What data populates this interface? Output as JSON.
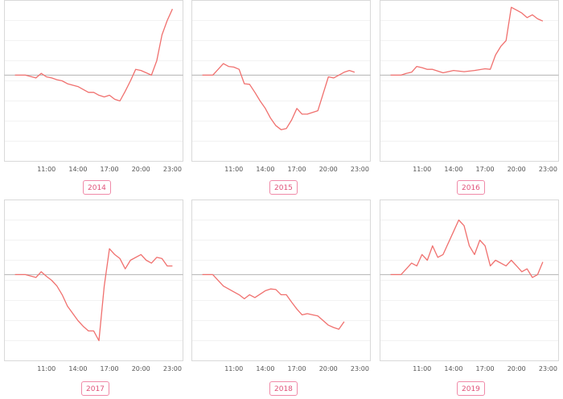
{
  "chart_data": [
    {
      "type": "line",
      "title": "",
      "year_label": "2014",
      "xticks": [
        "11:00",
        "14:00",
        "17:00",
        "20:00",
        "23:00"
      ],
      "baseline": 0,
      "ylim": [
        -15,
        13
      ],
      "x": [
        8.0,
        9.0,
        10.0,
        10.5,
        11.0,
        11.5,
        12.0,
        12.5,
        13.0,
        14.0,
        14.5,
        15.0,
        15.5,
        16.0,
        16.5,
        17.0,
        17.5,
        18.0,
        18.5,
        19.0,
        19.5,
        20.0,
        21.0,
        21.5,
        22.0,
        22.5,
        23.0
      ],
      "values": [
        0,
        0,
        -0.5,
        0.3,
        -0.3,
        -0.5,
        -0.8,
        -1.0,
        -1.5,
        -2.0,
        -2.5,
        -3.0,
        -3.0,
        -3.5,
        -3.8,
        -3.5,
        -4.2,
        -4.5,
        -2.8,
        -1.0,
        1.0,
        0.8,
        0,
        2.5,
        7.0,
        9.5,
        11.5
      ],
      "color": "#f0706e"
    },
    {
      "type": "line",
      "title": "",
      "year_label": "2015",
      "xticks": [
        "11:00",
        "14:00",
        "17:00",
        "20:00",
        "23:00"
      ],
      "baseline": 0,
      "ylim": [
        -15,
        13
      ],
      "x": [
        8.0,
        9.0,
        10.0,
        10.5,
        11.0,
        11.5,
        12.0,
        12.5,
        13.0,
        13.5,
        14.0,
        14.5,
        15.0,
        15.5,
        16.0,
        16.5,
        17.0,
        17.5,
        18.0,
        19.0,
        20.0,
        20.5,
        21.0,
        21.5,
        22.0,
        22.5
      ],
      "values": [
        0,
        0,
        2.0,
        1.5,
        1.4,
        1.0,
        -1.5,
        -1.6,
        -3.0,
        -4.5,
        -5.8,
        -7.5,
        -8.8,
        -9.5,
        -9.3,
        -7.8,
        -5.8,
        -6.8,
        -6.8,
        -6.2,
        -0.3,
        -0.5,
        0.0,
        0.5,
        0.8,
        0.5
      ],
      "color": "#f0706e"
    },
    {
      "type": "line",
      "title": "",
      "year_label": "2016",
      "xticks": [
        "11:00",
        "14:00",
        "17:00",
        "20:00",
        "23:00"
      ],
      "baseline": 0,
      "ylim": [
        -15,
        13
      ],
      "x": [
        8.0,
        9.0,
        9.5,
        10.0,
        10.5,
        11.0,
        11.5,
        12.0,
        13.0,
        14.0,
        15.0,
        16.0,
        17.0,
        17.5,
        18.0,
        18.5,
        19.0,
        19.5,
        20.0,
        20.5,
        21.0,
        21.5,
        22.0,
        22.5
      ],
      "values": [
        0,
        0,
        0.3,
        0.5,
        1.5,
        1.3,
        1.0,
        1.0,
        0.4,
        0.8,
        0.6,
        0.8,
        1.1,
        1.0,
        3.5,
        5.0,
        6.0,
        11.8,
        11.3,
        10.8,
        10.0,
        10.5,
        9.8,
        9.4
      ],
      "color": "#f0706e"
    },
    {
      "type": "line",
      "title": "",
      "year_label": "2017",
      "xticks": [
        "11:00",
        "14:00",
        "17:00",
        "20:00",
        "23:00"
      ],
      "baseline": 0,
      "ylim": [
        -15,
        13
      ],
      "x": [
        8.0,
        9.0,
        10.0,
        10.5,
        11.0,
        11.5,
        12.0,
        12.5,
        13.0,
        14.0,
        14.5,
        15.0,
        15.5,
        16.0,
        16.5,
        17.0,
        17.5,
        18.0,
        18.5,
        19.0,
        20.0,
        20.5,
        21.0,
        21.5,
        22.0,
        22.5,
        23.0
      ],
      "values": [
        0,
        0,
        -0.5,
        0.5,
        -0.3,
        -1.0,
        -2.0,
        -3.5,
        -5.5,
        -8.0,
        -9.0,
        -9.8,
        -9.8,
        -11.5,
        -2.0,
        4.5,
        3.5,
        2.8,
        1.0,
        2.5,
        3.5,
        2.5,
        2.0,
        3.0,
        2.8,
        1.5,
        1.5
      ],
      "color": "#f0706e"
    },
    {
      "type": "line",
      "title": "",
      "year_label": "2018",
      "xticks": [
        "11:00",
        "14:00",
        "17:00",
        "20:00",
        "23:00"
      ],
      "baseline": 0,
      "ylim": [
        -15,
        13
      ],
      "x": [
        8.0,
        9.0,
        10.0,
        10.5,
        11.0,
        11.5,
        12.0,
        12.5,
        13.0,
        14.0,
        14.5,
        15.0,
        15.5,
        16.0,
        16.5,
        17.0,
        17.5,
        18.0,
        18.5,
        19.0,
        20.0,
        20.5,
        21.0,
        21.5
      ],
      "values": [
        0,
        0,
        -2.0,
        -2.5,
        -3.0,
        -3.5,
        -4.2,
        -3.5,
        -4.0,
        -2.8,
        -2.5,
        -2.6,
        -3.5,
        -3.5,
        -4.8,
        -6.0,
        -7.0,
        -6.8,
        -7.0,
        -7.2,
        -8.8,
        -9.2,
        -9.5,
        -8.2
      ],
      "color": "#f0706e"
    },
    {
      "type": "line",
      "title": "",
      "year_label": "2019",
      "xticks": [
        "11:00",
        "14:00",
        "17:00",
        "20:00",
        "23:00"
      ],
      "baseline": 0,
      "ylim": [
        -15,
        13
      ],
      "x": [
        8.0,
        9.0,
        10.0,
        10.5,
        11.0,
        11.5,
        12.0,
        12.5,
        13.0,
        14.0,
        14.5,
        15.0,
        15.5,
        16.0,
        16.5,
        17.0,
        17.5,
        18.0,
        19.0,
        19.5,
        20.0,
        20.5,
        21.0,
        21.5,
        22.0,
        22.5
      ],
      "values": [
        0,
        0,
        2.0,
        1.5,
        3.5,
        2.5,
        5.0,
        3.0,
        3.5,
        7.5,
        9.5,
        8.5,
        5.0,
        3.5,
        6.0,
        5.0,
        1.5,
        2.5,
        1.5,
        2.5,
        1.5,
        0.5,
        1.0,
        -0.5,
        0,
        2.2
      ],
      "color": "#f0706e"
    }
  ]
}
